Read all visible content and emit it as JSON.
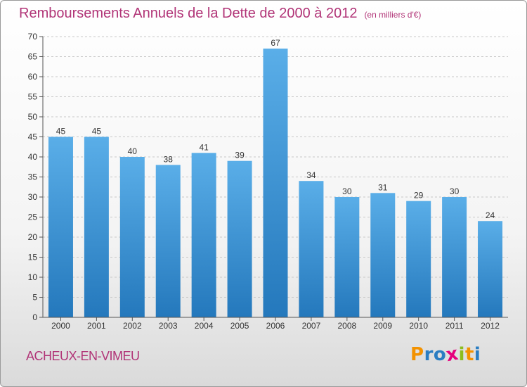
{
  "header": {
    "title": "Remboursements Annuels de la Dette de 2000 à 2012",
    "subtitle": "(en milliers d'€)"
  },
  "footer": {
    "town": "ACHEUX-EN-VIMEU",
    "logo": {
      "letters": [
        "P",
        "r",
        "o",
        "x",
        "i",
        "t",
        "i"
      ],
      "colors": [
        "#f39200",
        "#2a7dc2",
        "#2a7dc2",
        "#e5007d",
        "#8cbd1e",
        "#f39200",
        "#2a7dc2"
      ]
    }
  },
  "colors": {
    "title": "#b13477",
    "bar_light": "#5aaee8",
    "bar_dark": "#2478bc",
    "grid": "#c8c8c8"
  },
  "chart_data": {
    "type": "bar",
    "title": "Remboursements Annuels de la Dette de 2000 à 2012",
    "subtitle": "(en milliers d'€)",
    "categories": [
      "2000",
      "2001",
      "2002",
      "2003",
      "2004",
      "2005",
      "2006",
      "2007",
      "2008",
      "2009",
      "2010",
      "2011",
      "2012"
    ],
    "values": [
      45,
      45,
      40,
      38,
      41,
      39,
      67,
      34,
      30,
      31,
      29,
      30,
      24
    ],
    "ylim": [
      0,
      70
    ],
    "yticks": [
      0,
      5,
      10,
      15,
      20,
      25,
      30,
      35,
      40,
      45,
      50,
      55,
      60,
      65,
      70
    ],
    "xlabel": "",
    "ylabel": "",
    "grid": true,
    "data_labels": true
  }
}
